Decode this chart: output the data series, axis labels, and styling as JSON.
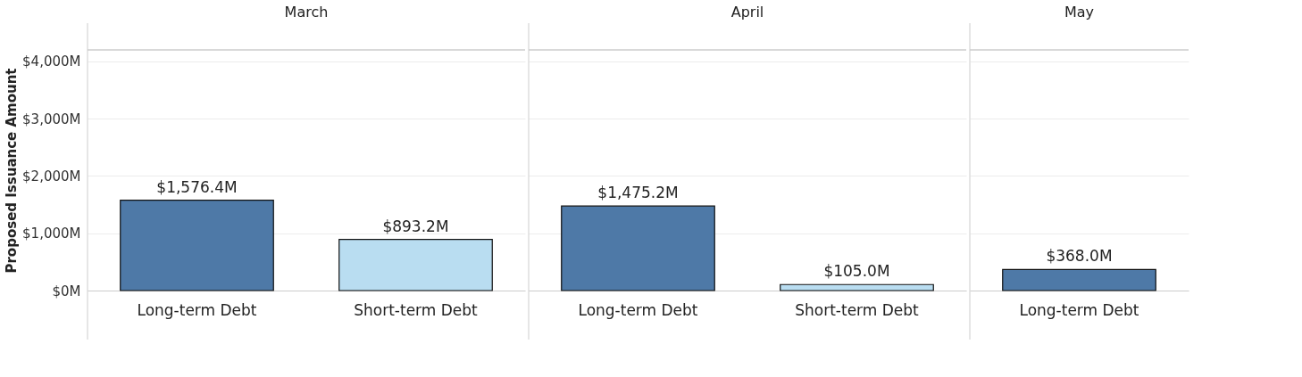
{
  "chart_data": [
    {
      "type": "bar",
      "title": "March",
      "ylabel": "Proposed Issuance Amount",
      "categories": [
        "Long-term Debt",
        "Short-term Debt"
      ],
      "values": [
        1576.4,
        893.2
      ],
      "colors": [
        "#4e79a7",
        "#b9ddf1"
      ],
      "value_labels": [
        "$1,576.4M",
        "$893.2M"
      ],
      "ylim": [
        0,
        4200
      ],
      "yticks": [
        {
          "value": 0,
          "label": "$0M"
        },
        {
          "value": 1000,
          "label": "$1,000M"
        },
        {
          "value": 2000,
          "label": "$2,000M"
        },
        {
          "value": 3000,
          "label": "$3,000M"
        },
        {
          "value": 4000,
          "label": "$4,000M"
        }
      ],
      "grid": "y"
    },
    {
      "type": "bar",
      "title": "April",
      "categories": [
        "Long-term Debt",
        "Short-term Debt"
      ],
      "values": [
        1475.2,
        105.0
      ],
      "colors": [
        "#4e79a7",
        "#b9ddf1"
      ],
      "value_labels": [
        "$1,475.2M",
        "$105.0M"
      ],
      "ylim": [
        0,
        4200
      ],
      "yticks": [
        0,
        1000,
        2000,
        3000,
        4000
      ],
      "grid": "y",
      "tick_labels": "x"
    },
    {
      "type": "bar",
      "title": "May",
      "categories": [
        "Long-term Debt"
      ],
      "values": [
        368.0
      ],
      "colors": [
        "#4e79a7"
      ],
      "value_labels": [
        "$368.0M"
      ],
      "ylim": [
        0,
        4200
      ],
      "yticks": [
        0,
        1000,
        2000,
        3000,
        4000
      ],
      "grid": "y",
      "tick_labels": "x"
    }
  ]
}
